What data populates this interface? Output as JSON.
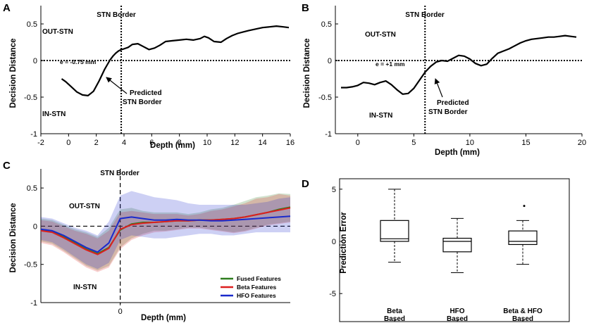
{
  "chart_data": [
    {
      "id": "A",
      "panel_label": "A",
      "type": "line",
      "xlabel": "Depth (mm)",
      "ylabel": "Decision Distance",
      "xlim": [
        -2,
        16
      ],
      "ylim": [
        -1,
        0.75
      ],
      "xticks": [
        "-2",
        "0",
        "2",
        "4",
        "6",
        "8",
        "10",
        "12",
        "14",
        "16"
      ],
      "xtick_values": [
        -2,
        0,
        2,
        4,
        6,
        8,
        10,
        12,
        14,
        16
      ],
      "yticks": [
        "-1",
        "-0.5",
        "0",
        "0.5"
      ],
      "ytick_values": [
        -1,
        -0.5,
        0,
        0.5
      ],
      "border_x": 3.8,
      "border_label": "STN Border",
      "out_label": "OUT-STN",
      "in_label": "IN-STN",
      "error_label": "e = -0.75 mm",
      "predicted_label_1": "Predicted",
      "predicted_label_2": "STN Border",
      "predicted_x": 3.05,
      "series": [
        {
          "name": "Decision Distance",
          "x": [
            -0.5,
            -0.2,
            0.2,
            0.6,
            1.0,
            1.4,
            1.8,
            2.2,
            2.6,
            3.0,
            3.2,
            3.4,
            3.6,
            3.8,
            4.0,
            4.3,
            4.6,
            5.0,
            5.4,
            5.8,
            6.2,
            6.6,
            7.0,
            7.5,
            8.0,
            8.5,
            9.0,
            9.5,
            9.8,
            10.1,
            10.5,
            11.0,
            11.4,
            11.8,
            12.2,
            12.6,
            13.0,
            13.5,
            14.0,
            14.5,
            15.0,
            15.5,
            15.9
          ],
          "y": [
            -0.25,
            -0.29,
            -0.36,
            -0.43,
            -0.47,
            -0.48,
            -0.42,
            -0.28,
            -0.12,
            0.01,
            0.06,
            0.1,
            0.13,
            0.15,
            0.16,
            0.18,
            0.22,
            0.23,
            0.19,
            0.15,
            0.17,
            0.21,
            0.26,
            0.27,
            0.28,
            0.29,
            0.28,
            0.3,
            0.33,
            0.31,
            0.26,
            0.25,
            0.3,
            0.34,
            0.37,
            0.39,
            0.41,
            0.43,
            0.45,
            0.46,
            0.47,
            0.46,
            0.45
          ]
        }
      ]
    },
    {
      "id": "B",
      "panel_label": "B",
      "type": "line",
      "xlabel": "Depth (mm)",
      "ylabel": "Decision Distance",
      "xlim": [
        -2,
        20
      ],
      "ylim": [
        -1,
        0.75
      ],
      "xticks": [
        "0",
        "5",
        "10",
        "15",
        "20"
      ],
      "xtick_values": [
        0,
        5,
        10,
        15,
        20
      ],
      "yticks": [
        "-1",
        "-0.5",
        "0",
        "0.5"
      ],
      "ytick_values": [
        -1,
        -0.5,
        0,
        0.5
      ],
      "border_x": 6,
      "border_label": "STN Border",
      "out_label": "OUT-STN",
      "in_label": "IN-STN",
      "error_label": "e = +1 mm",
      "predicted_label_1": "Predicted",
      "predicted_label_2": "STN Border",
      "predicted_x": 7,
      "series": [
        {
          "name": "Decision Distance",
          "x": [
            -1.5,
            -1.0,
            -0.5,
            0.0,
            0.5,
            1.0,
            1.5,
            2.0,
            2.5,
            3.0,
            3.5,
            4.0,
            4.5,
            5.0,
            5.5,
            6.0,
            6.5,
            7.0,
            7.5,
            8.0,
            8.5,
            9.0,
            9.5,
            10.0,
            10.5,
            11.0,
            11.5,
            12.0,
            12.5,
            13.0,
            13.5,
            14.0,
            14.5,
            15.0,
            15.5,
            16.0,
            16.5,
            17.0,
            17.5,
            18.0,
            18.5,
            19.0,
            19.5
          ],
          "y": [
            -0.37,
            -0.37,
            -0.36,
            -0.34,
            -0.3,
            -0.31,
            -0.33,
            -0.3,
            -0.28,
            -0.33,
            -0.4,
            -0.46,
            -0.45,
            -0.38,
            -0.27,
            -0.16,
            -0.08,
            -0.02,
            0.0,
            -0.01,
            0.03,
            0.07,
            0.06,
            0.02,
            -0.04,
            -0.07,
            -0.05,
            0.03,
            0.1,
            0.13,
            0.16,
            0.2,
            0.24,
            0.27,
            0.29,
            0.3,
            0.31,
            0.32,
            0.32,
            0.33,
            0.34,
            0.33,
            0.32
          ]
        }
      ]
    },
    {
      "id": "C",
      "panel_label": "C",
      "type": "area",
      "xlabel": "Depth (mm)",
      "ylabel": "Decision Distance",
      "xlim": [
        -7,
        15
      ],
      "ylim": [
        -1,
        0.75
      ],
      "xticks": [
        "0"
      ],
      "xtick_values": [
        0
      ],
      "yticks": [
        "-1",
        "-0.5",
        "0",
        "0.5"
      ],
      "ytick_values": [
        -1,
        -0.5,
        0,
        0.5
      ],
      "border_x": 0,
      "border_label": "STN Border",
      "out_label": "OUT-STN",
      "in_label": "IN-STN",
      "x": [
        -7,
        -6,
        -5,
        -4,
        -3,
        -2,
        -1,
        0,
        1,
        2,
        3,
        4,
        5,
        6,
        7,
        8,
        9,
        10,
        11,
        12,
        13,
        14,
        15
      ],
      "series": [
        {
          "name": "Fused Features",
          "color": "#2e7d1e",
          "values": [
            -0.05,
            -0.07,
            -0.14,
            -0.22,
            -0.3,
            -0.36,
            -0.28,
            -0.05,
            0.03,
            0.05,
            0.05,
            0.06,
            0.07,
            0.07,
            0.08,
            0.08,
            0.09,
            0.1,
            0.12,
            0.15,
            0.18,
            0.22,
            0.25
          ],
          "upper": [
            0.1,
            0.08,
            0.02,
            -0.04,
            -0.08,
            -0.14,
            -0.02,
            0.22,
            0.24,
            0.2,
            0.18,
            0.18,
            0.18,
            0.16,
            0.18,
            0.22,
            0.24,
            0.28,
            0.33,
            0.38,
            0.4,
            0.43,
            0.42
          ],
          "lower": [
            -0.2,
            -0.23,
            -0.32,
            -0.42,
            -0.52,
            -0.58,
            -0.52,
            -0.28,
            -0.16,
            -0.1,
            -0.06,
            -0.06,
            -0.04,
            -0.02,
            -0.02,
            -0.04,
            -0.06,
            -0.08,
            -0.06,
            -0.02,
            0.02,
            0.04,
            0.06
          ]
        },
        {
          "name": "Beta Features",
          "color": "#dd1f1f",
          "values": [
            -0.06,
            -0.08,
            -0.15,
            -0.23,
            -0.31,
            -0.37,
            -0.29,
            -0.04,
            0.02,
            0.04,
            0.05,
            0.06,
            0.07,
            0.07,
            0.08,
            0.08,
            0.09,
            0.1,
            0.12,
            0.15,
            0.18,
            0.21,
            0.24
          ],
          "upper": [
            0.08,
            0.06,
            0.0,
            -0.06,
            -0.1,
            -0.16,
            -0.06,
            0.18,
            0.2,
            0.18,
            0.16,
            0.16,
            0.16,
            0.14,
            0.16,
            0.2,
            0.22,
            0.26,
            0.3,
            0.36,
            0.38,
            0.42,
            0.4
          ],
          "lower": [
            -0.22,
            -0.25,
            -0.34,
            -0.44,
            -0.54,
            -0.6,
            -0.54,
            -0.3,
            -0.18,
            -0.12,
            -0.08,
            -0.07,
            -0.05,
            -0.03,
            -0.03,
            -0.05,
            -0.07,
            -0.09,
            -0.07,
            -0.03,
            0.01,
            0.03,
            0.05
          ]
        },
        {
          "name": "HFO Features",
          "color": "#1a2acc",
          "values": [
            -0.04,
            -0.06,
            -0.12,
            -0.2,
            -0.28,
            -0.34,
            -0.22,
            0.1,
            0.12,
            0.1,
            0.08,
            0.08,
            0.09,
            0.08,
            0.08,
            0.07,
            0.07,
            0.08,
            0.09,
            0.1,
            0.11,
            0.12,
            0.13
          ],
          "upper": [
            0.12,
            0.1,
            0.04,
            -0.02,
            -0.06,
            -0.12,
            0.06,
            0.4,
            0.46,
            0.42,
            0.38,
            0.36,
            0.34,
            0.3,
            0.28,
            0.28,
            0.28,
            0.28,
            0.28,
            0.3,
            0.32,
            0.36,
            0.38
          ],
          "lower": [
            -0.18,
            -0.21,
            -0.3,
            -0.4,
            -0.5,
            -0.56,
            -0.48,
            -0.18,
            -0.12,
            -0.14,
            -0.16,
            -0.16,
            -0.14,
            -0.12,
            -0.1,
            -0.1,
            -0.12,
            -0.12,
            -0.1,
            -0.08,
            -0.08,
            -0.08,
            -0.08
          ]
        }
      ]
    },
    {
      "id": "D",
      "panel_label": "D",
      "type": "box",
      "ylabel": "Prediction Error",
      "ylim": [
        -6,
        6
      ],
      "yticks": [
        "5",
        "0",
        "-5"
      ],
      "ytick_values": [
        5,
        0,
        -5
      ],
      "categories": [
        [
          "Beta",
          "Based"
        ],
        [
          "HFO",
          "Based"
        ],
        [
          "Beta & HFO",
          "Based"
        ]
      ],
      "boxes": [
        {
          "min": -2,
          "q1": 0,
          "median": 0.25,
          "q3": 2,
          "max": 5
        },
        {
          "min": -3,
          "q1": -1,
          "median": 0,
          "q3": 0.3,
          "max": 2.2
        },
        {
          "min": -2.2,
          "q1": -0.3,
          "median": 0,
          "q3": 1,
          "max": 2,
          "outliers": [
            3.4
          ]
        }
      ]
    }
  ]
}
